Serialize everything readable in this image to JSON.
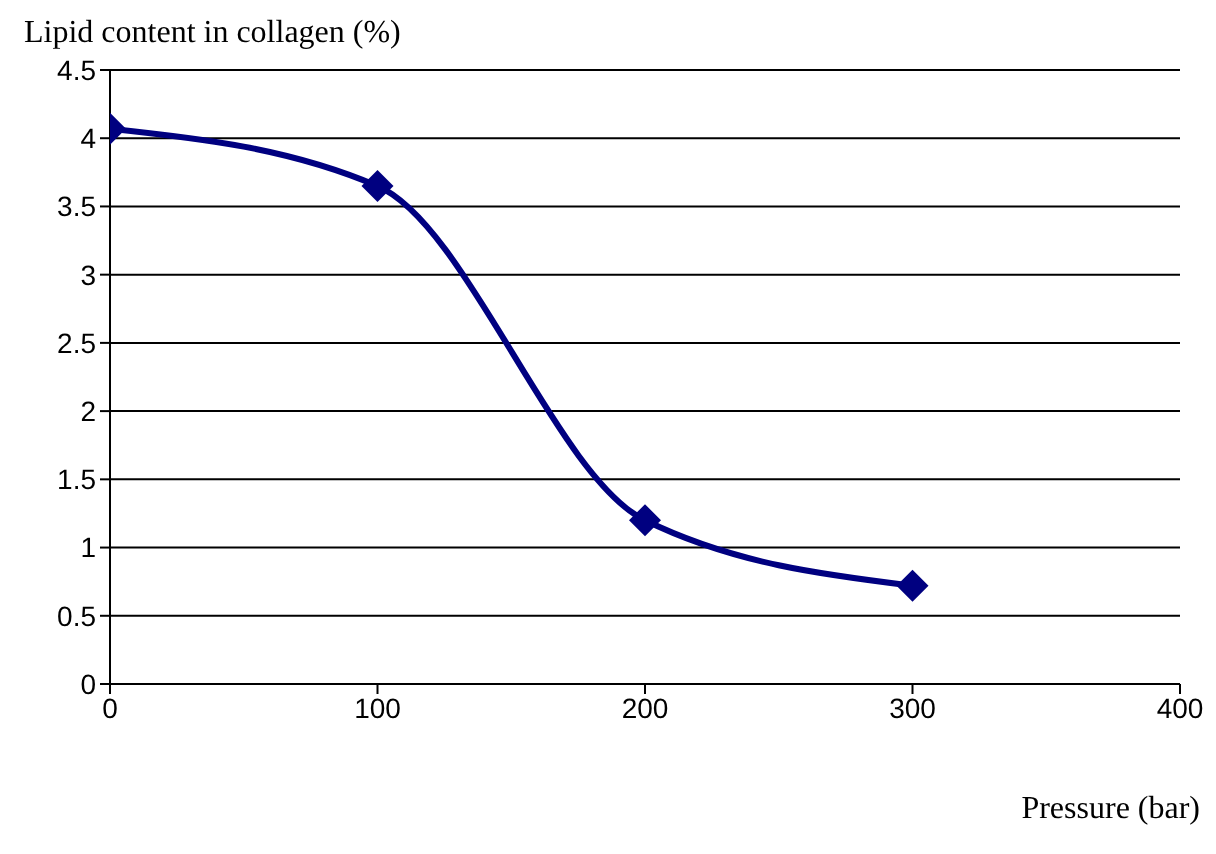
{
  "chart_data": {
    "type": "line",
    "ylabel": "Lipid content in collagen (%)",
    "xlabel": "Pressure (bar)",
    "x": [
      0,
      100,
      200,
      300
    ],
    "series": [
      {
        "color": "#000080",
        "values": [
          4.07,
          3.65,
          1.2,
          0.72
        ]
      }
    ],
    "xlim": [
      0,
      400
    ],
    "xticks": [
      0,
      100,
      200,
      300,
      400
    ],
    "ylim": [
      0,
      4.5
    ],
    "yticks": [
      0,
      0.5,
      1,
      1.5,
      2,
      2.5,
      3,
      3.5,
      4,
      4.5
    ],
    "grid": "y",
    "marker": "diamond",
    "line_style": "solid"
  }
}
